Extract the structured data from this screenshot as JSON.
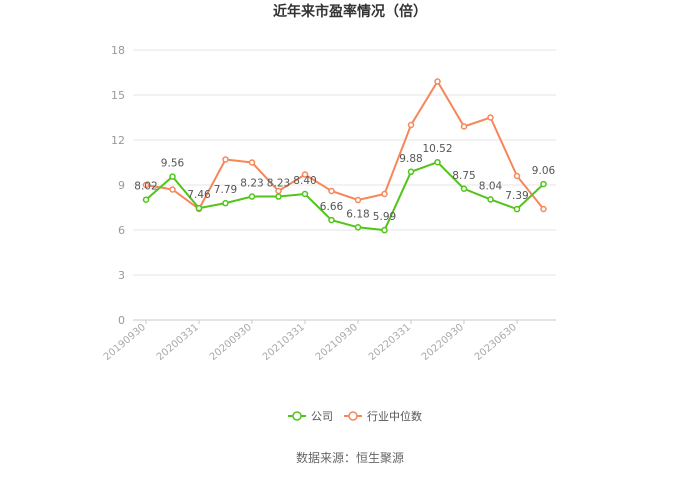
{
  "chart_data": {
    "type": "line",
    "title": "近年来市盈率情况（倍）",
    "source": "数据来源：恒生聚源",
    "ylim": [
      0,
      18
    ],
    "yticks": [
      0,
      3,
      6,
      9,
      12,
      15,
      18
    ],
    "grid": "horizontal",
    "legend_position": "bottom-center",
    "x_tick_labels": [
      "20190930",
      "20200331",
      "20200930",
      "20210331",
      "20210930",
      "20220331",
      "20220930",
      "20230630"
    ],
    "x_tick_indices": [
      0,
      2,
      4,
      6,
      8,
      10,
      12,
      14
    ],
    "point_count": 16,
    "series": [
      {
        "name": "公司",
        "color": "#52c41a",
        "values": [
          8.02,
          9.56,
          7.46,
          7.79,
          8.23,
          8.23,
          8.4,
          6.66,
          6.18,
          5.99,
          9.88,
          10.52,
          8.75,
          8.04,
          7.39,
          9.06
        ],
        "labels": [
          "8.02",
          "9.56",
          "7.46",
          "7.79",
          "8.23",
          "8.23",
          "8.40",
          "6.66",
          "6.18",
          "5.99",
          "9.88",
          "10.52",
          "8.75",
          "8.04",
          "7.39",
          "9.06"
        ]
      },
      {
        "name": "行业中位数",
        "color": "#f5875a",
        "values": [
          9.0,
          8.7,
          7.4,
          10.7,
          10.5,
          8.6,
          9.7,
          8.6,
          8.0,
          8.4,
          13.0,
          15.9,
          12.9,
          13.5,
          9.6,
          7.4
        ]
      }
    ]
  }
}
